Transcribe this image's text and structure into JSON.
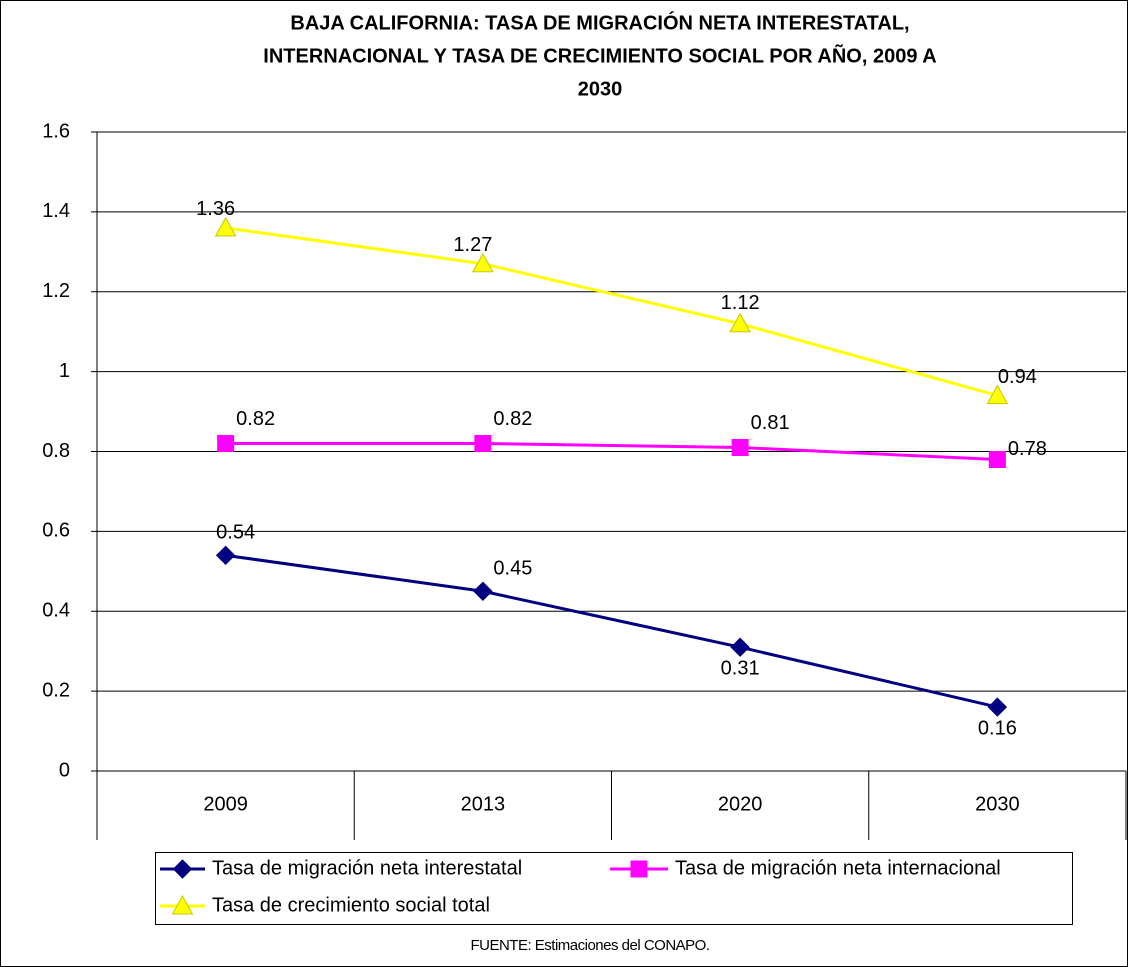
{
  "chart_data": {
    "type": "line",
    "title": [
      "BAJA CALIFORNIA: TASA DE MIGRACIÓN NETA INTERESTATAL,",
      "INTERNACIONAL Y TASA DE CRECIMIENTO SOCIAL POR AÑO, 2009 A",
      "2030"
    ],
    "categories": [
      "2009",
      "2013",
      "2020",
      "2030"
    ],
    "series": [
      {
        "name": "Tasa de migración neta interestatal",
        "color": "#000080",
        "marker": "diamond",
        "values": [
          0.54,
          0.45,
          0.31,
          0.16
        ]
      },
      {
        "name": "Tasa de migración neta internacional",
        "color": "#FF00FF",
        "marker": "square",
        "values": [
          0.82,
          0.82,
          0.81,
          0.78
        ]
      },
      {
        "name": "Tasa de crecimiento social total",
        "color": "#FFFF00",
        "marker": "triangle",
        "values": [
          1.36,
          1.27,
          1.12,
          0.94
        ]
      }
    ],
    "ylim": [
      0,
      1.6
    ],
    "yticks": [
      0,
      0.2,
      0.4,
      0.6,
      0.8,
      1,
      1.2,
      1.4,
      1.6
    ],
    "grid": true,
    "legend": "bottom",
    "source": "FUENTE: Estimaciones del CONAPO."
  }
}
